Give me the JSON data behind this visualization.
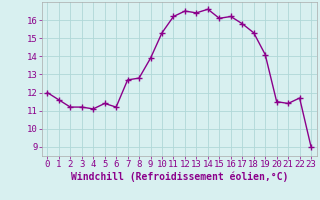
{
  "x": [
    0,
    1,
    2,
    3,
    4,
    5,
    6,
    7,
    8,
    9,
    10,
    11,
    12,
    13,
    14,
    15,
    16,
    17,
    18,
    19,
    20,
    21,
    22,
    23
  ],
  "y": [
    12.0,
    11.6,
    11.2,
    11.2,
    11.1,
    11.4,
    11.2,
    12.7,
    12.8,
    13.9,
    15.3,
    16.2,
    16.5,
    16.4,
    16.6,
    16.1,
    16.2,
    15.8,
    15.3,
    14.1,
    11.5,
    11.4,
    11.7,
    9.0
  ],
  "line_color": "#8b008b",
  "marker": "+",
  "marker_size": 4,
  "bg_color": "#d8f0f0",
  "grid_color": "#b0d8d8",
  "xlabel": "Windchill (Refroidissement éolien,°C)",
  "xlim": [
    -0.5,
    23.5
  ],
  "ylim": [
    8.5,
    17.0
  ],
  "yticks": [
    9,
    10,
    11,
    12,
    13,
    14,
    15,
    16
  ],
  "xticks": [
    0,
    1,
    2,
    3,
    4,
    5,
    6,
    7,
    8,
    9,
    10,
    11,
    12,
    13,
    14,
    15,
    16,
    17,
    18,
    19,
    20,
    21,
    22,
    23
  ],
  "tick_color": "#8b008b",
  "label_color": "#8b008b",
  "xlabel_fontsize": 7,
  "tick_fontsize": 6.5,
  "linewidth": 1.0
}
